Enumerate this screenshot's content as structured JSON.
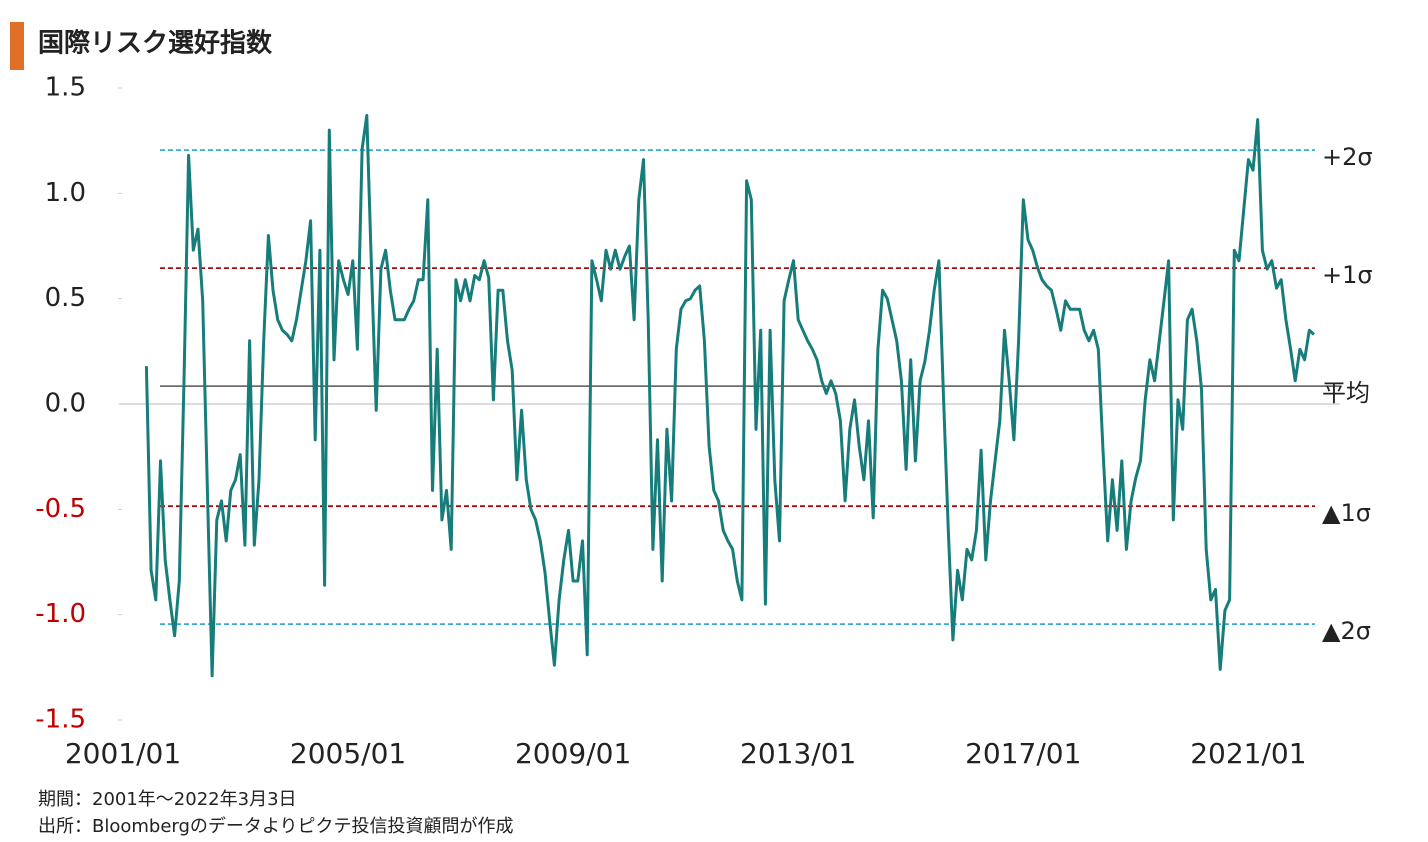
{
  "chart_data": {
    "type": "line",
    "title": "国際リスク選好指数",
    "notes": [
      "期間：2001年～2022年3月3日",
      "出所：Bloombergのデータよりピクテ投信投資顧問が作成"
    ],
    "x": [
      "2001/06",
      "2001/07",
      "2001/08",
      "2001/09",
      "2001/10",
      "2001/11",
      "2001/12",
      "2002/01",
      "2002/02",
      "2002/03",
      "2002/04",
      "2002/05",
      "2002/06",
      "2002/07",
      "2002/08",
      "2002/09",
      "2002/10",
      "2002/11",
      "2002/12",
      "2003/01",
      "2003/02",
      "2003/03",
      "2003/04",
      "2003/05",
      "2003/06",
      "2003/07",
      "2003/08",
      "2003/09",
      "2003/10",
      "2003/11",
      "2003/12",
      "2004/01",
      "2004/02",
      "2004/03",
      "2004/04",
      "2004/05",
      "2004/06",
      "2004/07",
      "2004/08",
      "2004/09",
      "2004/10",
      "2004/11",
      "2004/12",
      "2005/01",
      "2005/02",
      "2005/03",
      "2005/04",
      "2005/05",
      "2005/06",
      "2005/07",
      "2005/08",
      "2005/09",
      "2005/10",
      "2005/11",
      "2005/12",
      "2006/01",
      "2006/02",
      "2006/03",
      "2006/04",
      "2006/05",
      "2006/06",
      "2006/07",
      "2006/08",
      "2006/09",
      "2006/10",
      "2006/11",
      "2006/12",
      "2007/01",
      "2007/02",
      "2007/03",
      "2007/04",
      "2007/05",
      "2007/06",
      "2007/07",
      "2007/08",
      "2007/09",
      "2007/10",
      "2007/11",
      "2007/12",
      "2008/01",
      "2008/02",
      "2008/03",
      "2008/04",
      "2008/05",
      "2008/06",
      "2008/07",
      "2008/08",
      "2008/09",
      "2008/10",
      "2008/11",
      "2008/12",
      "2009/01",
      "2009/02",
      "2009/03",
      "2009/04",
      "2009/05",
      "2009/06",
      "2009/07",
      "2009/08",
      "2009/09",
      "2009/10",
      "2009/11",
      "2009/12",
      "2010/01",
      "2010/02",
      "2010/03",
      "2010/04",
      "2010/05",
      "2010/06",
      "2010/07",
      "2010/08",
      "2010/09",
      "2010/10",
      "2010/11",
      "2010/12",
      "2011/01",
      "2011/02",
      "2011/03",
      "2011/04",
      "2011/05",
      "2011/06",
      "2011/07",
      "2011/08",
      "2011/09",
      "2011/10",
      "2011/11",
      "2011/12",
      "2012/01",
      "2012/02",
      "2012/03",
      "2012/04",
      "2012/05",
      "2012/06",
      "2012/07",
      "2012/08",
      "2012/09",
      "2012/10",
      "2012/11",
      "2012/12",
      "2013/01",
      "2013/02",
      "2013/03",
      "2013/04",
      "2013/05",
      "2013/06",
      "2013/07",
      "2013/08",
      "2013/09",
      "2013/10",
      "2013/11",
      "2013/12",
      "2014/01",
      "2014/02",
      "2014/03",
      "2014/04",
      "2014/05",
      "2014/06",
      "2014/07",
      "2014/08",
      "2014/09",
      "2014/10",
      "2014/11",
      "2014/12",
      "2015/01",
      "2015/02",
      "2015/03",
      "2015/04",
      "2015/05",
      "2015/06",
      "2015/07",
      "2015/08",
      "2015/09",
      "2015/10",
      "2015/11",
      "2015/12",
      "2016/01",
      "2016/02",
      "2016/03",
      "2016/04",
      "2016/05",
      "2016/06",
      "2016/07",
      "2016/08",
      "2016/09",
      "2016/10",
      "2016/11",
      "2016/12",
      "2017/01",
      "2017/02",
      "2017/03",
      "2017/04",
      "2017/05",
      "2017/06",
      "2017/07",
      "2017/08",
      "2017/09",
      "2017/10",
      "2017/11",
      "2017/12",
      "2018/01",
      "2018/02",
      "2018/03",
      "2018/04",
      "2018/05",
      "2018/06",
      "2018/07",
      "2018/08",
      "2018/09",
      "2018/10",
      "2018/11",
      "2018/12",
      "2019/01",
      "2019/02",
      "2019/03",
      "2019/04",
      "2019/05",
      "2019/06",
      "2019/07",
      "2019/08",
      "2019/09",
      "2019/10",
      "2019/11",
      "2019/12",
      "2020/01",
      "2020/02",
      "2020/03",
      "2020/04",
      "2020/05",
      "2020/06",
      "2020/07",
      "2020/08",
      "2020/09",
      "2020/10",
      "2020/11",
      "2020/12",
      "2021/01",
      "2021/02",
      "2021/03",
      "2021/04",
      "2021/05",
      "2021/06",
      "2021/07",
      "2021/08",
      "2021/09",
      "2021/10",
      "2021/11",
      "2021/12",
      "2022/01",
      "2022/02",
      "2022/03"
    ],
    "series": [
      {
        "color": "#177d7a",
        "values": [
          0.18,
          -0.79,
          -0.93,
          -0.27,
          -0.74,
          -0.93,
          -1.1,
          -0.84,
          0.11,
          1.18,
          0.73,
          0.83,
          0.49,
          -0.41,
          -1.29,
          -0.55,
          -0.46,
          -0.65,
          -0.41,
          -0.36,
          -0.24,
          -0.67,
          0.3,
          -0.67,
          -0.36,
          0.3,
          0.8,
          0.54,
          0.4,
          0.35,
          0.33,
          0.3,
          0.4,
          0.54,
          0.68,
          0.87,
          -0.17,
          0.73,
          -0.86,
          1.3,
          0.21,
          0.68,
          0.59,
          0.52,
          0.68,
          0.26,
          1.21,
          1.37,
          0.64,
          -0.03,
          0.64,
          0.73,
          0.54,
          0.4,
          0.4,
          0.4,
          0.45,
          0.49,
          0.59,
          0.59,
          0.97,
          -0.41,
          0.26,
          -0.55,
          -0.41,
          -0.69,
          0.59,
          0.49,
          0.59,
          0.49,
          0.61,
          0.59,
          0.68,
          0.6,
          0.02,
          0.54,
          0.54,
          0.3,
          0.16,
          -0.36,
          -0.03,
          -0.36,
          -0.5,
          -0.55,
          -0.65,
          -0.8,
          -1.03,
          -1.24,
          -0.93,
          -0.74,
          -0.6,
          -0.84,
          -0.84,
          -0.65,
          -1.19,
          0.68,
          0.59,
          0.49,
          0.73,
          0.64,
          0.73,
          0.64,
          0.7,
          0.75,
          0.4,
          0.97,
          1.16,
          0.4,
          -0.69,
          -0.17,
          -0.84,
          -0.12,
          -0.46,
          0.26,
          0.45,
          0.49,
          0.5,
          0.54,
          0.56,
          0.3,
          -0.2,
          -0.41,
          -0.46,
          -0.6,
          -0.65,
          -0.69,
          -0.84,
          -0.93,
          1.06,
          0.97,
          -0.12,
          0.35,
          -0.95,
          0.35,
          -0.36,
          -0.65,
          0.49,
          0.59,
          0.68,
          0.4,
          0.35,
          0.3,
          0.26,
          0.21,
          0.11,
          0.05,
          0.11,
          0.05,
          -0.08,
          -0.46,
          -0.12,
          0.02,
          -0.2,
          -0.36,
          -0.08,
          -0.54,
          0.26,
          0.54,
          0.5,
          0.4,
          0.3,
          0.11,
          -0.31,
          0.21,
          -0.27,
          0.11,
          0.2,
          0.35,
          0.54,
          0.68,
          0.02,
          -0.6,
          -1.12,
          -0.79,
          -0.93,
          -0.69,
          -0.74,
          -0.6,
          -0.22,
          -0.74,
          -0.46,
          -0.27,
          -0.08,
          0.35,
          0.11,
          -0.17,
          0.3,
          0.97,
          0.78,
          0.73,
          0.65,
          0.59,
          0.56,
          0.54,
          0.45,
          0.35,
          0.49,
          0.45,
          0.45,
          0.45,
          0.35,
          0.3,
          0.35,
          0.26,
          -0.22,
          -0.65,
          -0.36,
          -0.6,
          -0.27,
          -0.69,
          -0.46,
          -0.35,
          -0.27,
          0.02,
          0.21,
          0.11,
          0.3,
          0.49,
          0.68,
          -0.55,
          0.02,
          -0.12,
          0.4,
          0.45,
          0.3,
          0.07,
          -0.69,
          -0.93,
          -0.88,
          -1.26,
          -0.98,
          -0.93,
          0.73,
          0.68,
          0.92,
          1.16,
          1.11,
          1.35,
          0.73,
          0.64,
          0.68,
          0.55,
          0.59,
          0.4,
          0.26,
          0.11,
          0.26,
          0.21,
          0.35,
          0.33
        ]
      }
    ],
    "xlim": [
      "2001/01",
      "2022/03"
    ],
    "xticks": [
      "2001/01",
      "2005/01",
      "2009/01",
      "2013/01",
      "2017/01",
      "2021/01"
    ],
    "ylim": [
      -1.5,
      1.5
    ],
    "yticks": [
      {
        "value": 1.5,
        "label": "1.5"
      },
      {
        "value": 1,
        "label": "1.0"
      },
      {
        "value": 0.5,
        "label": "0.5"
      },
      {
        "value": 0,
        "label": "0.0"
      },
      {
        "value": -0.5,
        "label": "-0.5"
      },
      {
        "value": -1,
        "label": "-1.0"
      },
      {
        "value": -1.5,
        "label": "-1.5"
      }
    ],
    "negative_tick_color": "#c00000",
    "grid": false,
    "reference_lines": [
      {
        "label": "+2σ",
        "value": 1.205,
        "color": "#3aa9d4",
        "style": "dashed"
      },
      {
        "label": "+1σ",
        "value": 0.645,
        "color": "#a50f0f",
        "style": "dashed"
      },
      {
        "label": "平均",
        "value": 0.085,
        "color": "#555555",
        "style": "solid"
      },
      {
        "label": "▲1σ",
        "value": -0.485,
        "color": "#a50f0f",
        "style": "dashed"
      },
      {
        "label": "▲2σ",
        "value": -1.045,
        "color": "#3aa9d4",
        "style": "dashed"
      }
    ]
  }
}
